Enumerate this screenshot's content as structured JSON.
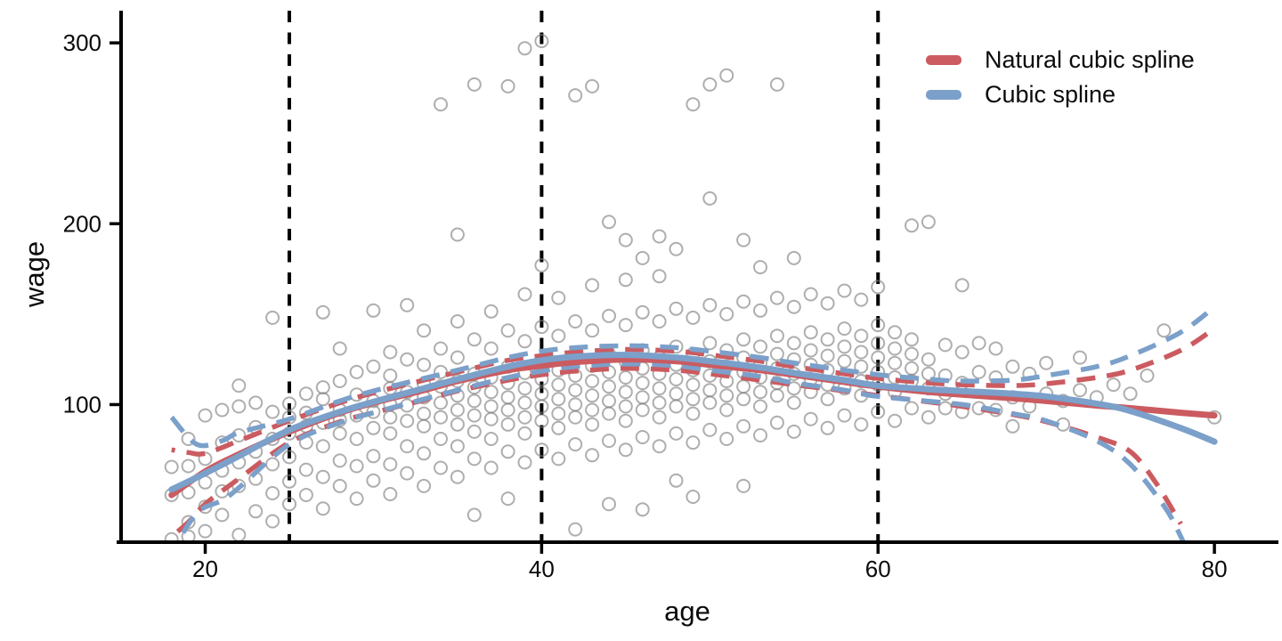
{
  "chart_data": {
    "type": "scatter",
    "title": "",
    "x": {
      "label": "age",
      "range": [
        15.05,
        83.7
      ],
      "ticks": [
        20,
        40,
        60,
        80
      ]
    },
    "y": {
      "label": "wage",
      "range": [
        24.9,
        317.8
      ],
      "ticks": [
        100,
        200,
        300
      ]
    },
    "knots": [
      25,
      40,
      60
    ],
    "colors": {
      "red": "#CB5B60",
      "blue": "#7BA0CA",
      "point": "rgba(125,125,125,0.62)",
      "knot": "#000000"
    },
    "legend": [
      {
        "label": "Natural cubic spline",
        "color": "#CB5B60"
      },
      {
        "label": "Cubic spline",
        "color": "#7BA0CA"
      }
    ],
    "series": [
      {
        "name": "natural_cubic_spline_fit",
        "style": "solid",
        "color": "red",
        "points": [
          [
            18,
            50
          ],
          [
            20,
            63
          ],
          [
            22,
            72.5
          ],
          [
            25,
            85
          ],
          [
            28,
            95.5
          ],
          [
            30,
            101
          ],
          [
            33,
            108
          ],
          [
            35,
            113
          ],
          [
            38,
            119
          ],
          [
            40,
            121.5
          ],
          [
            42,
            123.5
          ],
          [
            45,
            125
          ],
          [
            48,
            124
          ],
          [
            50,
            122
          ],
          [
            53,
            119
          ],
          [
            55,
            116.5
          ],
          [
            58,
            112.5
          ],
          [
            60,
            110
          ],
          [
            63,
            107
          ],
          [
            65,
            105.5
          ],
          [
            68,
            103.5
          ],
          [
            70,
            102
          ],
          [
            73,
            99.5
          ],
          [
            75,
            98
          ],
          [
            78,
            95.5
          ],
          [
            80,
            94
          ]
        ]
      },
      {
        "name": "cubic_spline_fit",
        "style": "solid",
        "color": "blue",
        "points": [
          [
            18,
            53
          ],
          [
            20,
            62
          ],
          [
            22,
            71.5
          ],
          [
            25,
            86
          ],
          [
            28,
            96
          ],
          [
            30,
            101.5
          ],
          [
            33,
            109
          ],
          [
            35,
            114
          ],
          [
            38,
            121
          ],
          [
            40,
            124.5
          ],
          [
            42,
            126.5
          ],
          [
            45,
            127.5
          ],
          [
            48,
            126
          ],
          [
            50,
            124
          ],
          [
            53,
            120.5
          ],
          [
            55,
            117.5
          ],
          [
            58,
            113.5
          ],
          [
            60,
            110.5
          ],
          [
            63,
            108.5
          ],
          [
            65,
            107.5
          ],
          [
            68,
            106
          ],
          [
            70,
            104.5
          ],
          [
            73,
            100.5
          ],
          [
            75,
            96.5
          ],
          [
            78,
            87
          ],
          [
            80,
            79.5
          ]
        ]
      },
      {
        "name": "natural_cubic_spline_upper_ci",
        "style": "dashed",
        "color": "red",
        "points": [
          [
            18,
            75
          ],
          [
            19,
            73.5
          ],
          [
            20,
            73
          ],
          [
            22,
            80
          ],
          [
            25,
            91
          ],
          [
            28,
            101
          ],
          [
            30,
            106.5
          ],
          [
            33,
            113.5
          ],
          [
            35,
            118
          ],
          [
            38,
            124.5
          ],
          [
            40,
            127
          ],
          [
            42,
            129
          ],
          [
            45,
            130.5
          ],
          [
            48,
            129.5
          ],
          [
            50,
            127.5
          ],
          [
            53,
            124
          ],
          [
            55,
            121
          ],
          [
            58,
            117
          ],
          [
            60,
            114.5
          ],
          [
            63,
            112
          ],
          [
            65,
            111
          ],
          [
            68,
            110.5
          ],
          [
            70,
            111.5
          ],
          [
            73,
            115
          ],
          [
            75,
            119
          ],
          [
            78,
            130
          ],
          [
            80,
            142
          ]
        ]
      },
      {
        "name": "natural_cubic_spline_lower_ci",
        "style": "dashed",
        "color": "red",
        "points": [
          [
            18,
            27
          ],
          [
            19,
            35
          ],
          [
            20,
            45
          ],
          [
            22,
            59
          ],
          [
            25,
            79
          ],
          [
            28,
            90.5
          ],
          [
            30,
            95.5
          ],
          [
            33,
            102.5
          ],
          [
            35,
            107.5
          ],
          [
            38,
            113.5
          ],
          [
            40,
            116.5
          ],
          [
            42,
            118.5
          ],
          [
            45,
            120
          ],
          [
            48,
            119
          ],
          [
            50,
            117
          ],
          [
            53,
            113.5
          ],
          [
            55,
            111
          ],
          [
            58,
            107.5
          ],
          [
            60,
            105
          ],
          [
            63,
            101.5
          ],
          [
            65,
            99
          ],
          [
            68,
            94.5
          ],
          [
            70,
            90.5
          ],
          [
            73,
            82
          ],
          [
            75,
            74
          ],
          [
            76.5,
            57
          ],
          [
            78,
            34
          ]
        ]
      },
      {
        "name": "cubic_spline_upper_ci",
        "style": "dashed",
        "color": "blue",
        "points": [
          [
            18,
            93
          ],
          [
            19.5,
            78
          ],
          [
            21,
            80
          ],
          [
            22,
            84.5
          ],
          [
            25,
            92
          ],
          [
            28,
            102
          ],
          [
            30,
            107.5
          ],
          [
            33,
            114.5
          ],
          [
            35,
            119
          ],
          [
            38,
            126
          ],
          [
            40,
            129.5
          ],
          [
            42,
            131.5
          ],
          [
            45,
            132.5
          ],
          [
            48,
            131.5
          ],
          [
            50,
            129.5
          ],
          [
            53,
            126
          ],
          [
            55,
            123
          ],
          [
            58,
            119
          ],
          [
            60,
            116.5
          ],
          [
            63,
            114
          ],
          [
            65,
            113
          ],
          [
            68,
            113.5
          ],
          [
            70,
            116
          ],
          [
            73,
            121
          ],
          [
            75,
            127
          ],
          [
            78,
            140
          ],
          [
            80,
            154
          ]
        ]
      },
      {
        "name": "cubic_spline_lower_ci",
        "style": "dashed",
        "color": "blue",
        "points": [
          [
            18,
            18
          ],
          [
            19.5,
            40
          ],
          [
            21,
            47
          ],
          [
            22,
            54
          ],
          [
            25,
            78
          ],
          [
            28,
            90
          ],
          [
            30,
            95.5
          ],
          [
            33,
            103
          ],
          [
            35,
            108
          ],
          [
            38,
            115
          ],
          [
            40,
            118.5
          ],
          [
            42,
            121
          ],
          [
            45,
            122.5
          ],
          [
            48,
            121.5
          ],
          [
            50,
            119
          ],
          [
            53,
            115.5
          ],
          [
            55,
            112
          ],
          [
            58,
            108
          ],
          [
            60,
            104.5
          ],
          [
            65,
            100
          ],
          [
            68,
            95
          ],
          [
            70,
            91
          ],
          [
            73,
            80
          ],
          [
            75,
            67
          ],
          [
            77,
            44
          ],
          [
            78,
            27
          ],
          [
            79,
            6
          ]
        ]
      }
    ],
    "scatter": {
      "18": [
        25.5,
        50,
        65.5
      ],
      "19": [
        27,
        35,
        51.5,
        66,
        81
      ],
      "20": [
        30,
        43.5,
        57,
        70,
        94
      ],
      "21": [
        39,
        52,
        63.5,
        79,
        97
      ],
      "22": [
        28,
        55,
        68,
        83,
        99,
        110.5
      ],
      "23": [
        41,
        59,
        74,
        87.5,
        101
      ],
      "24": [
        35.5,
        51,
        67,
        81,
        96,
        148
      ],
      "25": [
        45,
        57.5,
        71,
        84,
        93,
        100.5
      ],
      "26": [
        50,
        64,
        79,
        88,
        95.5,
        106
      ],
      "27": [
        42.5,
        60,
        77,
        90,
        103,
        109.5,
        151
      ],
      "28": [
        55,
        69,
        84,
        91.5,
        97,
        113,
        131
      ],
      "29": [
        48,
        66,
        81,
        94,
        105.5,
        118
      ],
      "30": [
        58,
        71.5,
        87,
        96,
        102,
        121,
        152
      ],
      "31": [
        50.5,
        67,
        84,
        93,
        100,
        109,
        116,
        129
      ],
      "32": [
        62,
        77,
        91,
        99.5,
        107,
        125,
        155
      ],
      "33": [
        55,
        73,
        88,
        95,
        104,
        111.5,
        122,
        141
      ],
      "34": [
        65,
        81,
        93,
        101,
        110,
        118,
        131,
        266
      ],
      "35": [
        60,
        77,
        89,
        97,
        105,
        113,
        126,
        146,
        194
      ],
      "36": [
        39,
        70,
        85,
        94,
        102,
        109.5,
        117,
        136,
        277
      ],
      "37": [
        65,
        81,
        92,
        99,
        107,
        115,
        131,
        151.5
      ],
      "38": [
        48,
        74,
        89,
        97,
        104,
        112,
        121,
        141,
        276
      ],
      "39": [
        68,
        84,
        93,
        101,
        109,
        117.5,
        135,
        161,
        297
      ],
      "40": [
        75,
        91,
        99,
        106,
        114,
        123,
        143,
        177,
        301
      ],
      "41": [
        70,
        87,
        95,
        103,
        111,
        119,
        138,
        159
      ],
      "42": [
        31,
        78,
        93,
        100,
        108,
        116,
        126,
        146,
        271
      ],
      "43": [
        72,
        89,
        97,
        105,
        113,
        121.5,
        141,
        166,
        276
      ],
      "44": [
        45,
        80,
        95,
        102,
        110,
        118,
        128,
        149,
        201
      ],
      "45": [
        75,
        91,
        99,
        107,
        115,
        124,
        144,
        169,
        191
      ],
      "46": [
        42,
        82,
        97,
        104,
        112,
        120,
        130,
        151,
        181
      ],
      "47": [
        77,
        93,
        101,
        109,
        117,
        126,
        146,
        171,
        193
      ],
      "48": [
        58,
        84,
        99,
        106,
        114,
        122,
        132,
        153,
        186
      ],
      "49": [
        49,
        79,
        95,
        103,
        111,
        119,
        128,
        148,
        266
      ],
      "50": [
        86,
        101,
        108,
        116,
        124,
        134,
        155,
        214,
        277
      ],
      "51": [
        81,
        97,
        105,
        113,
        121,
        130,
        150,
        282
      ],
      "52": [
        55,
        88,
        103,
        110,
        118,
        126,
        136,
        157,
        191
      ],
      "53": [
        83,
        99,
        107,
        115,
        123,
        132,
        152,
        176
      ],
      "54": [
        90,
        105,
        112,
        120,
        128,
        138,
        159,
        277
      ],
      "55": [
        85,
        101,
        109,
        117,
        125,
        134,
        154,
        181
      ],
      "56": [
        92,
        107,
        114,
        122,
        130,
        140,
        161
      ],
      "57": [
        87,
        103,
        111,
        119,
        127,
        136,
        156
      ],
      "58": [
        94,
        109,
        116,
        124,
        132,
        142,
        163
      ],
      "59": [
        89,
        105,
        113,
        121,
        129,
        138,
        158
      ],
      "60": [
        96,
        111,
        118,
        126,
        134,
        144,
        165
      ],
      "61": [
        91,
        107,
        115,
        123,
        131,
        140
      ],
      "62": [
        98,
        113,
        120,
        128,
        136,
        199
      ],
      "63": [
        93,
        109,
        117,
        125,
        201
      ],
      "64": [
        98,
        106,
        116,
        133
      ],
      "65": [
        96,
        112,
        129,
        166
      ],
      "66": [
        98,
        118,
        134
      ],
      "67": [
        97,
        115,
        131
      ],
      "68": [
        88,
        104,
        121
      ],
      "69": [
        99,
        117
      ],
      "70": [
        106,
        123
      ],
      "71": [
        89,
        102
      ],
      "72": [
        108,
        126
      ],
      "73": [
        104
      ],
      "74": [
        111
      ],
      "75": [
        106
      ],
      "76": [
        116
      ],
      "77": [
        141
      ],
      "80": [
        93
      ]
    },
    "legend_position": "top-right",
    "grid": false
  }
}
